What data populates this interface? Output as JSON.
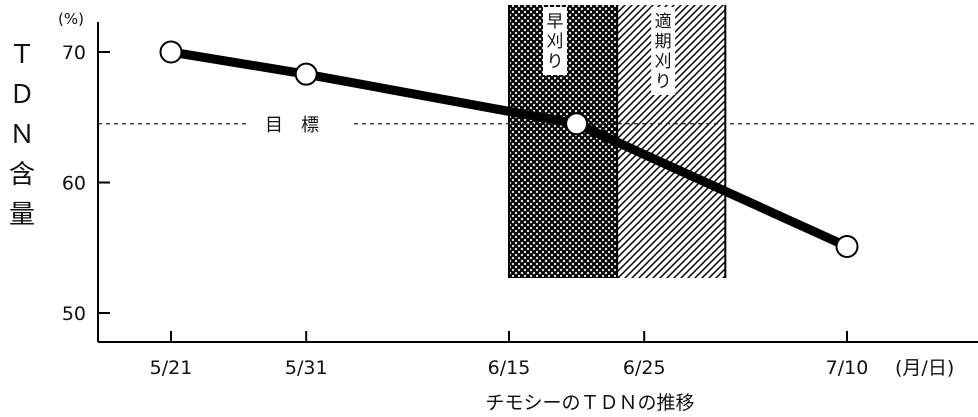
{
  "chart_data": {
    "type": "line",
    "title": "",
    "xlabel": "チモシーのＴＤＮの推移",
    "ylabel": "ＴＤＮ含量",
    "y_unit": "(%)",
    "x_unit": "(月/日)",
    "ylim": [
      48,
      74
    ],
    "yticks": [
      50,
      60,
      70
    ],
    "x_tick_labels": [
      "5/21",
      "5/31",
      "6/15",
      "6/25",
      "7/10"
    ],
    "x_tick_days": [
      0,
      10,
      25,
      35,
      50
    ],
    "series": [
      {
        "points": [
          {
            "day": 0,
            "tdn": 70.0
          },
          {
            "day": 10,
            "tdn": 68.3
          },
          {
            "day": 30,
            "tdn": 64.5
          },
          {
            "day": 50,
            "tdn": 55.1
          }
        ]
      }
    ],
    "target": {
      "value": 64.5,
      "label": "目　標"
    },
    "bands": [
      {
        "label": "早刈り",
        "start_day": 25,
        "end_day": 33,
        "pattern": "crosshatch"
      },
      {
        "label": "適期刈り",
        "start_day": 33,
        "end_day": 41,
        "pattern": "diagonal"
      }
    ],
    "grid": false,
    "legend": "none"
  }
}
